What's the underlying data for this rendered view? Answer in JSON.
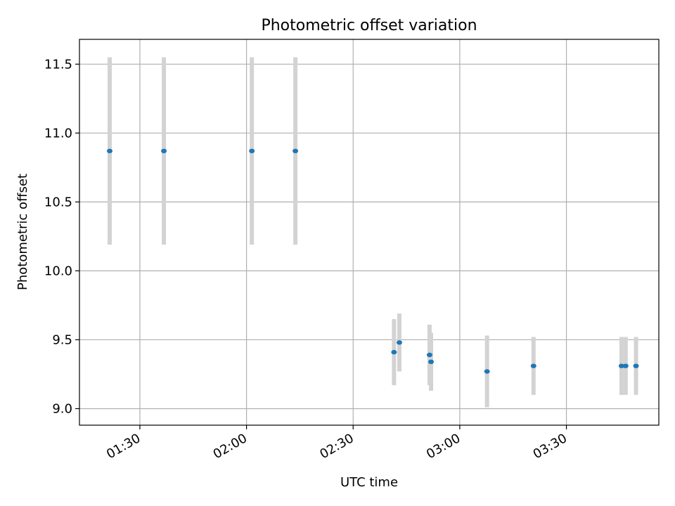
{
  "chart_data": {
    "type": "scatter",
    "title": "Photometric offset variation",
    "xlabel": "UTC time",
    "ylabel": "Photometric offset",
    "x_axis": {
      "scale": "time",
      "range": [
        "01:13",
        "03:56"
      ],
      "ticks": [
        "01:30",
        "02:00",
        "02:30",
        "03:00",
        "03:30"
      ]
    },
    "y_axis": {
      "range": [
        8.88,
        11.68
      ],
      "ticks": [
        "9.0",
        "9.5",
        "10.0",
        "10.5",
        "11.0",
        "11.5"
      ]
    },
    "grid": true,
    "legend": "none",
    "colors": {
      "point": "#1f77b4",
      "errorbar": "#d3d3d3",
      "grid": "#b0b0b0"
    },
    "points": [
      {
        "time": "01:21:30",
        "y": 10.87,
        "err": 0.68
      },
      {
        "time": "01:36:45",
        "y": 10.87,
        "err": 0.68
      },
      {
        "time": "02:01:30",
        "y": 10.87,
        "err": 0.68
      },
      {
        "time": "02:13:45",
        "y": 10.87,
        "err": 0.68
      },
      {
        "time": "02:41:30",
        "y": 9.41,
        "err": 0.24
      },
      {
        "time": "02:43:00",
        "y": 9.48,
        "err": 0.21
      },
      {
        "time": "02:51:30",
        "y": 9.39,
        "err": 0.22
      },
      {
        "time": "02:51:55",
        "y": 9.34,
        "err": 0.21
      },
      {
        "time": "03:07:40",
        "y": 9.27,
        "err": 0.26
      },
      {
        "time": "03:20:45",
        "y": 9.31,
        "err": 0.21
      },
      {
        "time": "03:45:30",
        "y": 9.31,
        "err": 0.21
      },
      {
        "time": "03:46:40",
        "y": 9.31,
        "err": 0.21
      },
      {
        "time": "03:49:35",
        "y": 9.31,
        "err": 0.21
      }
    ]
  }
}
